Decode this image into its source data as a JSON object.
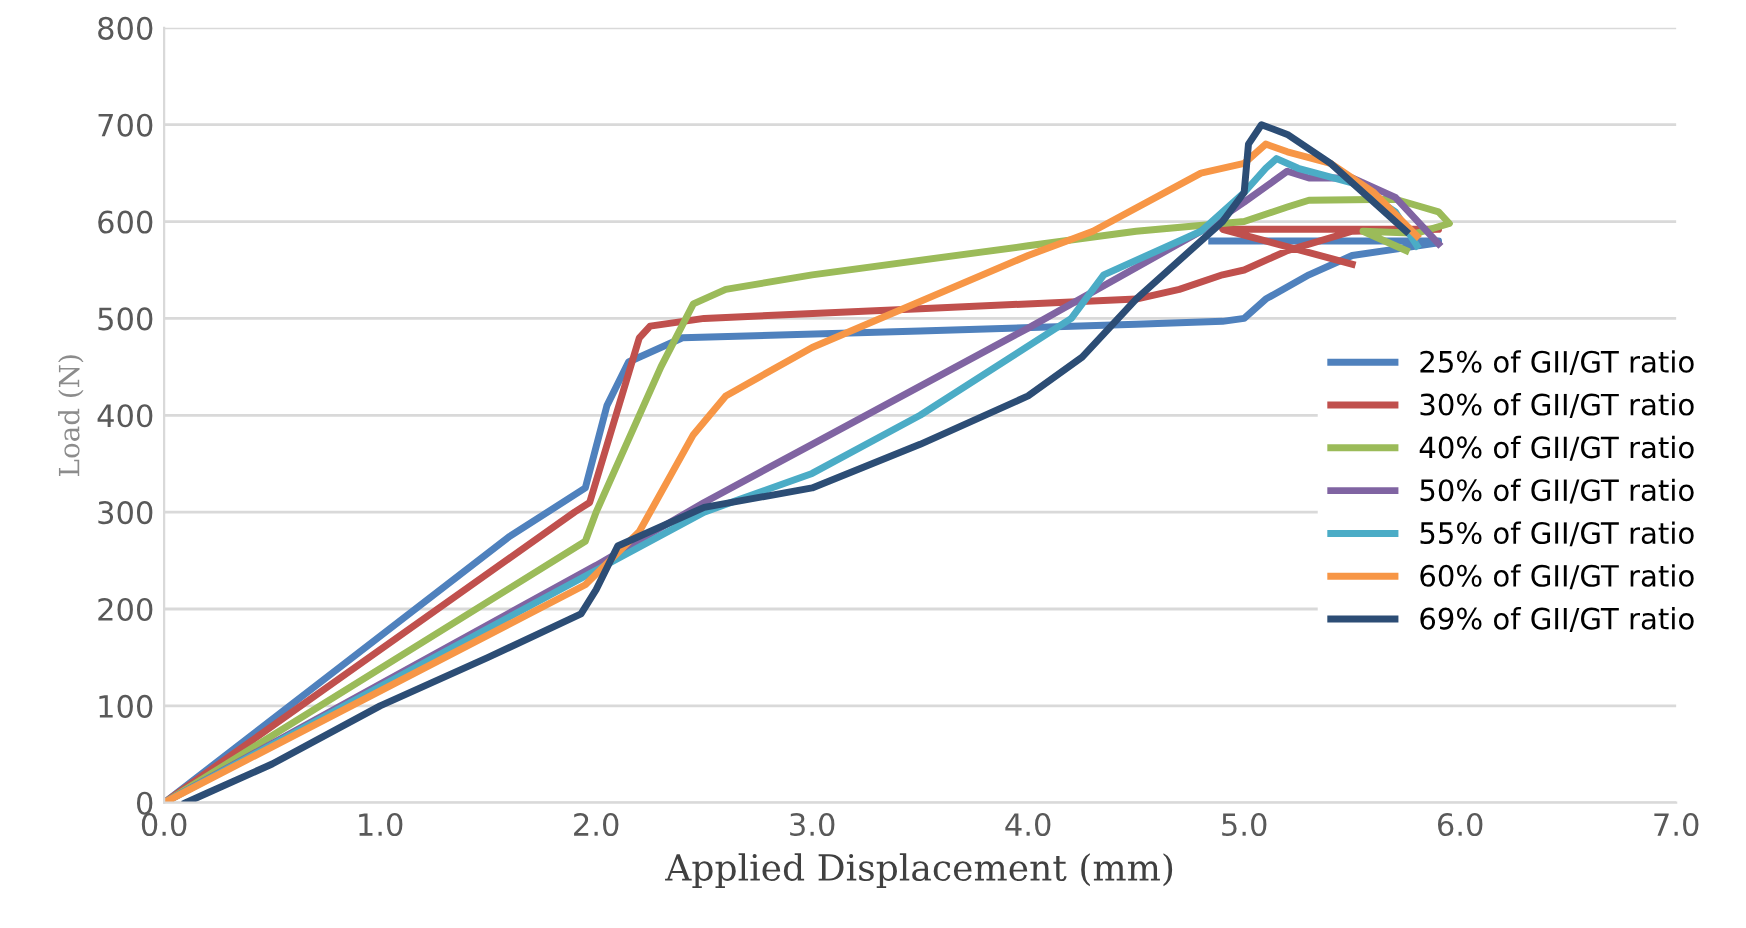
{
  "chart_data": {
    "type": "line",
    "xlabel": "Applied Displacement (mm)",
    "ylabel": "Load (N)",
    "xlim": [
      0,
      7
    ],
    "ylim": [
      0,
      800
    ],
    "xticks": [
      {
        "value": 0,
        "label": "0.0"
      },
      {
        "value": 1,
        "label": "1.0"
      },
      {
        "value": 2,
        "label": "2.0"
      },
      {
        "value": 3,
        "label": "3.0"
      },
      {
        "value": 4,
        "label": "4.0"
      },
      {
        "value": 5,
        "label": "5.0"
      },
      {
        "value": 6,
        "label": "6.0"
      },
      {
        "value": 7,
        "label": "7.0"
      }
    ],
    "yticks": [
      0,
      100,
      200,
      300,
      400,
      500,
      600,
      700,
      800
    ],
    "grid": "y",
    "legend": "right",
    "marker": "none",
    "line_style": "solid",
    "series": [
      {
        "name": "25% of GII/GT ratio",
        "color": "#4f81bd",
        "x": [
          0,
          1.6,
          1.95,
          2.05,
          2.15,
          2.4,
          3.5,
          4.5,
          4.9,
          5.0,
          5.1,
          5.3,
          5.5,
          5.9,
          5.9,
          4.85
        ],
        "values": [
          0,
          275,
          325,
          410,
          455,
          480,
          487,
          494,
          497,
          500,
          520,
          545,
          565,
          578,
          580,
          580
        ]
      },
      {
        "name": "30% of GII/GT ratio",
        "color": "#c0504d",
        "x": [
          0,
          1.9,
          1.97,
          2.2,
          2.25,
          2.5,
          3.5,
          4.5,
          4.7,
          4.9,
          5.0,
          5.2,
          5.5,
          5.9,
          4.9,
          5.5
        ],
        "values": [
          0,
          300,
          310,
          480,
          492,
          500,
          510,
          520,
          530,
          545,
          550,
          570,
          590,
          592,
          592,
          556
        ]
      },
      {
        "name": "40% of GII/GT ratio",
        "color": "#9bbb59",
        "x": [
          0,
          1.95,
          2.0,
          2.1,
          2.3,
          2.45,
          2.6,
          3.0,
          4.0,
          4.5,
          5.0,
          5.2,
          5.3,
          5.7,
          5.9,
          5.95,
          5.8,
          5.55,
          5.75
        ],
        "values": [
          0,
          270,
          300,
          350,
          450,
          515,
          530,
          545,
          575,
          590,
          600,
          615,
          622,
          623,
          610,
          598,
          588,
          590,
          570
        ]
      },
      {
        "name": "50% of GII/GT ratio",
        "color": "#8064a2",
        "x": [
          0,
          2.0,
          2.5,
          3.0,
          4.0,
          4.8,
          5.0,
          5.2,
          5.3,
          5.5,
          5.7,
          5.9
        ],
        "values": [
          0,
          245,
          310,
          370,
          490,
          590,
          620,
          652,
          645,
          645,
          625,
          577
        ]
      },
      {
        "name": "55% of GII/GT ratio",
        "color": "#4bacc6",
        "x": [
          0,
          2.0,
          2.5,
          3.0,
          3.5,
          4.2,
          4.35,
          4.8,
          5.0,
          5.1,
          5.15,
          5.25,
          5.5,
          5.7,
          5.8
        ],
        "values": [
          0,
          240,
          300,
          340,
          400,
          500,
          545,
          590,
          630,
          655,
          665,
          655,
          640,
          610,
          575
        ]
      },
      {
        "name": "60% of GII/GT ratio",
        "color": "#f79646",
        "x": [
          0,
          1.95,
          2.2,
          2.35,
          2.45,
          2.6,
          3.0,
          4.0,
          4.3,
          4.8,
          5.0,
          5.1,
          5.2,
          5.4,
          5.6,
          5.8
        ],
        "values": [
          0,
          225,
          280,
          340,
          380,
          420,
          470,
          565,
          590,
          650,
          660,
          680,
          672,
          660,
          630,
          585
        ]
      },
      {
        "name": "69% of GII/GT ratio",
        "color": "#2c4d75",
        "x": [
          0.1,
          0.2,
          0.5,
          1.0,
          1.5,
          1.93,
          2.0,
          2.1,
          2.5,
          3.0,
          3.5,
          4.0,
          4.25,
          4.5,
          4.9,
          5.0,
          5.02,
          5.08,
          5.2,
          5.4,
          5.6,
          5.75
        ],
        "values": [
          0,
          10,
          40,
          100,
          150,
          195,
          220,
          265,
          305,
          325,
          370,
          420,
          460,
          520,
          600,
          630,
          680,
          700,
          690,
          660,
          620,
          590
        ]
      }
    ]
  }
}
